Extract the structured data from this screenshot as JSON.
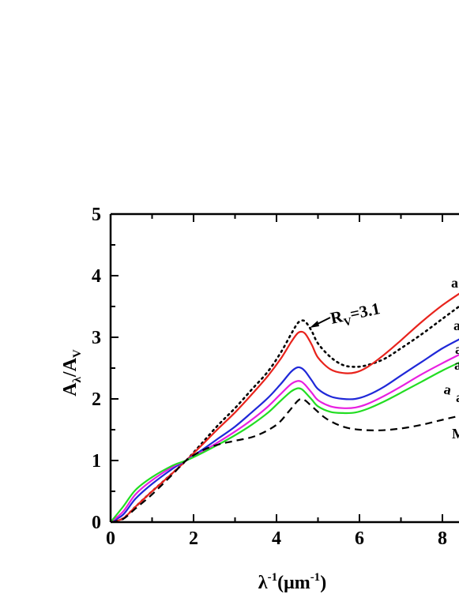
{
  "chart_data": {
    "type": "line",
    "title": "",
    "xlabel": "λ⁻¹(μm⁻¹)",
    "ylabel": "Aλ/AV",
    "xlim": [
      0,
      8.5
    ],
    "ylim": [
      0,
      5
    ],
    "xticks": [
      0,
      2,
      4,
      6,
      8
    ],
    "yticks": [
      0,
      1,
      2,
      3,
      4,
      5
    ],
    "grid": false,
    "annotations": [
      {
        "text": "R",
        "sub": "V",
        "tail": "=3.1",
        "x": 4.7,
        "y": 3.3
      }
    ],
    "edge_labels": [
      "a",
      "a",
      "a",
      "a",
      "a",
      "a",
      "M"
    ],
    "series": [
      {
        "color": "#000000",
        "style": "dotted",
        "x": [
          0,
          0.3,
          0.6,
          1.0,
          1.5,
          1.82,
          2.2,
          2.6,
          3.0,
          3.4,
          3.8,
          4.1,
          4.35,
          4.5,
          4.6,
          4.7,
          4.85,
          5.0,
          5.3,
          5.6,
          5.9,
          6.2,
          6.6,
          7.0,
          7.5,
          8.0,
          8.5
        ],
        "y": [
          0,
          0.06,
          0.25,
          0.5,
          0.8,
          1.0,
          1.28,
          1.58,
          1.85,
          2.15,
          2.45,
          2.75,
          3.05,
          3.22,
          3.27,
          3.25,
          3.1,
          2.9,
          2.68,
          2.55,
          2.52,
          2.55,
          2.65,
          2.82,
          3.05,
          3.3,
          3.55
        ]
      },
      {
        "color": "#e8231c",
        "style": "solid",
        "x": [
          0,
          0.3,
          0.6,
          1.0,
          1.5,
          1.82,
          2.2,
          2.6,
          3.0,
          3.4,
          3.8,
          4.1,
          4.35,
          4.5,
          4.6,
          4.7,
          4.85,
          5.0,
          5.3,
          5.6,
          5.9,
          6.2,
          6.6,
          7.0,
          7.5,
          8.0,
          8.5
        ],
        "y": [
          0,
          0.06,
          0.25,
          0.5,
          0.8,
          1.0,
          1.25,
          1.52,
          1.78,
          2.07,
          2.38,
          2.65,
          2.92,
          3.06,
          3.09,
          3.05,
          2.88,
          2.67,
          2.48,
          2.42,
          2.43,
          2.52,
          2.72,
          2.95,
          3.25,
          3.52,
          3.75
        ]
      },
      {
        "color": "#1f28d8",
        "style": "solid",
        "x": [
          0,
          0.3,
          0.6,
          1.0,
          1.5,
          1.82,
          2.2,
          2.6,
          3.0,
          3.4,
          3.8,
          4.1,
          4.35,
          4.5,
          4.6,
          4.7,
          4.85,
          5.0,
          5.3,
          5.6,
          5.9,
          6.2,
          6.6,
          7.0,
          7.5,
          8.0,
          8.5
        ],
        "y": [
          0,
          0.12,
          0.38,
          0.62,
          0.87,
          1.0,
          1.17,
          1.36,
          1.55,
          1.78,
          2.02,
          2.24,
          2.44,
          2.51,
          2.5,
          2.44,
          2.3,
          2.16,
          2.04,
          2.0,
          2.0,
          2.06,
          2.2,
          2.38,
          2.6,
          2.82,
          3.0
        ]
      },
      {
        "color": "#e81fe0",
        "style": "solid",
        "x": [
          0,
          0.3,
          0.6,
          1.0,
          1.5,
          1.82,
          2.2,
          2.6,
          3.0,
          3.4,
          3.8,
          4.1,
          4.35,
          4.5,
          4.6,
          4.7,
          4.85,
          5.0,
          5.3,
          5.6,
          5.9,
          6.2,
          6.6,
          7.0,
          7.5,
          8.0,
          8.5
        ],
        "y": [
          0,
          0.17,
          0.45,
          0.68,
          0.9,
          1.0,
          1.14,
          1.3,
          1.47,
          1.66,
          1.88,
          2.08,
          2.24,
          2.29,
          2.28,
          2.22,
          2.1,
          1.98,
          1.88,
          1.85,
          1.86,
          1.92,
          2.05,
          2.2,
          2.4,
          2.58,
          2.75
        ]
      },
      {
        "color": "#22dd22",
        "style": "solid",
        "x": [
          0,
          0.3,
          0.6,
          1.0,
          1.5,
          1.82,
          2.2,
          2.6,
          3.0,
          3.4,
          3.8,
          4.1,
          4.35,
          4.5,
          4.6,
          4.7,
          4.85,
          5.0,
          5.3,
          5.6,
          5.9,
          6.2,
          6.6,
          7.0,
          7.5,
          8.0,
          8.5
        ],
        "y": [
          0,
          0.25,
          0.52,
          0.73,
          0.92,
          1.0,
          1.12,
          1.26,
          1.41,
          1.58,
          1.78,
          1.97,
          2.12,
          2.17,
          2.16,
          2.1,
          1.99,
          1.88,
          1.79,
          1.77,
          1.78,
          1.84,
          1.96,
          2.1,
          2.28,
          2.46,
          2.62
        ]
      },
      {
        "color": "#000000",
        "style": "dashed",
        "x": [
          0,
          0.3,
          0.6,
          1.0,
          1.5,
          1.82,
          2.2,
          2.6,
          3.0,
          3.5,
          4.0,
          4.3,
          4.5,
          4.6,
          4.7,
          4.9,
          5.2,
          5.6,
          6.0,
          6.5,
          7.0,
          7.5,
          8.0,
          8.5
        ],
        "y": [
          0,
          0.05,
          0.22,
          0.45,
          0.78,
          1.0,
          1.16,
          1.26,
          1.32,
          1.4,
          1.58,
          1.8,
          1.96,
          2.0,
          1.97,
          1.85,
          1.68,
          1.55,
          1.5,
          1.49,
          1.52,
          1.58,
          1.66,
          1.74
        ]
      }
    ]
  }
}
